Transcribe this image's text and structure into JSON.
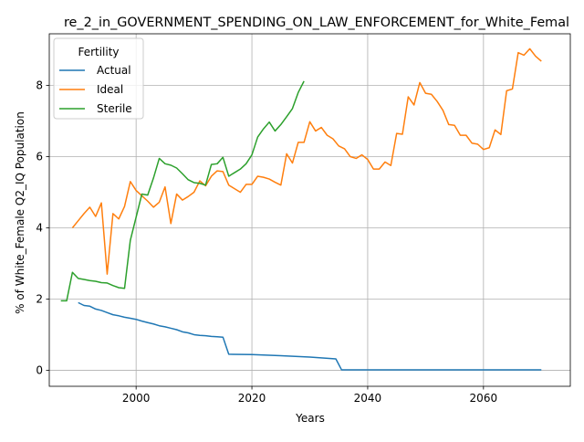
{
  "chart_data": {
    "type": "line",
    "title": "re_2_in_GOVERNMENT_SPENDING_ON_LAW_ENFORCEMENT_for_White_Femal",
    "xlabel": "Years",
    "ylabel": "% of White_Female Q2_IQ Population",
    "xlim": [
      1985,
      2075
    ],
    "ylim": [
      -0.45,
      9.45
    ],
    "xticks": [
      2000,
      2020,
      2040,
      2060
    ],
    "yticks": [
      0,
      2,
      4,
      6,
      8
    ],
    "grid": true,
    "legend": {
      "title": "Fertility",
      "position": "top-left"
    },
    "series": [
      {
        "name": "Actual",
        "color": "#1f77b4",
        "points": [
          [
            1990,
            1.9
          ],
          [
            1991,
            1.82
          ],
          [
            1992,
            1.8
          ],
          [
            1993,
            1.72
          ],
          [
            1994,
            1.68
          ],
          [
            1995,
            1.62
          ],
          [
            1996,
            1.56
          ],
          [
            1997,
            1.53
          ],
          [
            1998,
            1.49
          ],
          [
            1999,
            1.46
          ],
          [
            2000,
            1.43
          ],
          [
            2001,
            1.38
          ],
          [
            2002,
            1.34
          ],
          [
            2003,
            1.3
          ],
          [
            2004,
            1.25
          ],
          [
            2005,
            1.22
          ],
          [
            2006,
            1.18
          ],
          [
            2007,
            1.14
          ],
          [
            2008,
            1.08
          ],
          [
            2009,
            1.05
          ],
          [
            2010,
            1.0
          ],
          [
            2011,
            0.98
          ],
          [
            2012,
            0.97
          ],
          [
            2013,
            0.95
          ],
          [
            2014,
            0.94
          ],
          [
            2015,
            0.93
          ],
          [
            2016,
            0.45
          ],
          [
            2020,
            0.44
          ],
          [
            2025,
            0.41
          ],
          [
            2030,
            0.37
          ],
          [
            2034.5,
            0.32
          ],
          [
            2035.5,
            0.01
          ],
          [
            2070,
            0.01
          ]
        ]
      },
      {
        "name": "Ideal",
        "color": "#ff7f0e",
        "points": [
          [
            1989,
            4.0
          ],
          [
            1990,
            4.2
          ],
          [
            1991,
            4.4
          ],
          [
            1992,
            4.58
          ],
          [
            1993,
            4.32
          ],
          [
            1994,
            4.7
          ],
          [
            1995,
            2.7
          ],
          [
            1996,
            4.4
          ],
          [
            1997,
            4.25
          ],
          [
            1998,
            4.6
          ],
          [
            1999,
            5.3
          ],
          [
            2000,
            5.05
          ],
          [
            2001,
            4.9
          ],
          [
            2002,
            4.75
          ],
          [
            2003,
            4.58
          ],
          [
            2004,
            4.72
          ],
          [
            2005,
            5.15
          ],
          [
            2006,
            4.12
          ],
          [
            2007,
            4.95
          ],
          [
            2008,
            4.78
          ],
          [
            2009,
            4.88
          ],
          [
            2010,
            5.0
          ],
          [
            2011,
            5.32
          ],
          [
            2012,
            5.18
          ],
          [
            2013,
            5.45
          ],
          [
            2014,
            5.6
          ],
          [
            2015,
            5.58
          ],
          [
            2016,
            5.2
          ],
          [
            2017,
            5.1
          ],
          [
            2018,
            5.0
          ],
          [
            2019,
            5.22
          ],
          [
            2020,
            5.22
          ],
          [
            2021,
            5.45
          ],
          [
            2022,
            5.42
          ],
          [
            2023,
            5.37
          ],
          [
            2024,
            5.28
          ],
          [
            2025,
            5.2
          ],
          [
            2026,
            6.08
          ],
          [
            2027,
            5.82
          ],
          [
            2028,
            6.4
          ],
          [
            2029,
            6.4
          ],
          [
            2030,
            6.98
          ],
          [
            2031,
            6.72
          ],
          [
            2032,
            6.82
          ],
          [
            2033,
            6.6
          ],
          [
            2034,
            6.5
          ],
          [
            2035,
            6.3
          ],
          [
            2036,
            6.22
          ],
          [
            2037,
            6.0
          ],
          [
            2038,
            5.95
          ],
          [
            2039,
            6.05
          ],
          [
            2040,
            5.92
          ],
          [
            2041,
            5.65
          ],
          [
            2042,
            5.65
          ],
          [
            2043,
            5.85
          ],
          [
            2044,
            5.75
          ],
          [
            2045,
            6.65
          ],
          [
            2046,
            6.63
          ],
          [
            2047,
            7.68
          ],
          [
            2048,
            7.45
          ],
          [
            2049,
            8.08
          ],
          [
            2050,
            7.78
          ],
          [
            2051,
            7.75
          ],
          [
            2052,
            7.55
          ],
          [
            2053,
            7.3
          ],
          [
            2054,
            6.9
          ],
          [
            2055,
            6.88
          ],
          [
            2056,
            6.6
          ],
          [
            2057,
            6.6
          ],
          [
            2058,
            6.38
          ],
          [
            2059,
            6.35
          ],
          [
            2060,
            6.2
          ],
          [
            2061,
            6.25
          ],
          [
            2062,
            6.75
          ],
          [
            2063,
            6.62
          ],
          [
            2064,
            7.85
          ],
          [
            2065,
            7.9
          ],
          [
            2066,
            8.92
          ],
          [
            2067,
            8.85
          ],
          [
            2068,
            9.03
          ],
          [
            2069,
            8.82
          ],
          [
            2070,
            8.68
          ]
        ]
      },
      {
        "name": "Sterile",
        "color": "#2ca02c",
        "points": [
          [
            1987,
            1.95
          ],
          [
            1988,
            1.95
          ],
          [
            1989,
            2.75
          ],
          [
            1990,
            2.58
          ],
          [
            1991,
            2.55
          ],
          [
            1992,
            2.52
          ],
          [
            1993,
            2.5
          ],
          [
            1994,
            2.46
          ],
          [
            1995,
            2.45
          ],
          [
            1996,
            2.38
          ],
          [
            1997,
            2.32
          ],
          [
            1998,
            2.3
          ],
          [
            1999,
            3.65
          ],
          [
            2000,
            4.3
          ],
          [
            2001,
            4.95
          ],
          [
            2002,
            4.92
          ],
          [
            2003,
            5.4
          ],
          [
            2004,
            5.95
          ],
          [
            2005,
            5.8
          ],
          [
            2006,
            5.76
          ],
          [
            2007,
            5.68
          ],
          [
            2008,
            5.52
          ],
          [
            2009,
            5.35
          ],
          [
            2010,
            5.27
          ],
          [
            2011,
            5.25
          ],
          [
            2012,
            5.2
          ],
          [
            2013,
            5.78
          ],
          [
            2014,
            5.8
          ],
          [
            2015,
            5.98
          ],
          [
            2016,
            5.45
          ],
          [
            2017,
            5.55
          ],
          [
            2018,
            5.65
          ],
          [
            2019,
            5.8
          ],
          [
            2020,
            6.05
          ],
          [
            2021,
            6.55
          ],
          [
            2022,
            6.78
          ],
          [
            2023,
            6.97
          ],
          [
            2024,
            6.72
          ],
          [
            2025,
            6.9
          ],
          [
            2026,
            7.12
          ],
          [
            2027,
            7.35
          ],
          [
            2028,
            7.8
          ],
          [
            2029,
            8.12
          ]
        ]
      }
    ]
  }
}
